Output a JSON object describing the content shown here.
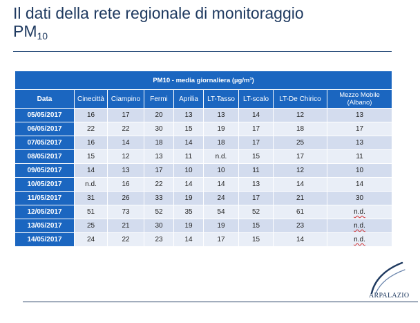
{
  "slide": {
    "title_line1": "Il dati della rete regionale di monitoraggio",
    "title_pm": "PM",
    "title_pm_sub": "10"
  },
  "table": {
    "caption": "PM10 - media giornaliera (µg/m³)",
    "headers": {
      "date": "Data",
      "cinecitta": "Cinecittà",
      "ciampino": "Ciampino",
      "fermi": "Fermi",
      "aprilia": "Aprilia",
      "lt_tasso": "LT-Tasso",
      "lt_scalo": "LT-scalo",
      "lt_de_chirico": "LT-De Chirico",
      "mezzo_mobile": "Mezzo Mobile (Albano)"
    },
    "rows": [
      {
        "date": "05/05/2017",
        "cinecitta": "16",
        "ciampino": "17",
        "fermi": "20",
        "aprilia": "13",
        "lt_tasso": "13",
        "lt_scalo": "14",
        "lt_de_chirico": "12",
        "mezzo_mobile": "13"
      },
      {
        "date": "06/05/2017",
        "cinecitta": "22",
        "ciampino": "22",
        "fermi": "30",
        "aprilia": "15",
        "lt_tasso": "19",
        "lt_scalo": "17",
        "lt_de_chirico": "18",
        "mezzo_mobile": "17"
      },
      {
        "date": "07/05/2017",
        "cinecitta": "16",
        "ciampino": "14",
        "fermi": "18",
        "aprilia": "14",
        "lt_tasso": "18",
        "lt_scalo": "17",
        "lt_de_chirico": "25",
        "mezzo_mobile": "13"
      },
      {
        "date": "08/05/2017",
        "cinecitta": "15",
        "ciampino": "12",
        "fermi": "13",
        "aprilia": "11",
        "lt_tasso": "n.d.",
        "lt_scalo": "15",
        "lt_de_chirico": "17",
        "mezzo_mobile": "11"
      },
      {
        "date": "09/05/2017",
        "cinecitta": "14",
        "ciampino": "13",
        "fermi": "17",
        "aprilia": "10",
        "lt_tasso": "10",
        "lt_scalo": "11",
        "lt_de_chirico": "12",
        "mezzo_mobile": "10"
      },
      {
        "date": "10/05/2017",
        "cinecitta": "n.d.",
        "ciampino": "16",
        "fermi": "22",
        "aprilia": "14",
        "lt_tasso": "14",
        "lt_scalo": "13",
        "lt_de_chirico": "14",
        "mezzo_mobile": "14"
      },
      {
        "date": "11/05/2017",
        "cinecitta": "31",
        "ciampino": "26",
        "fermi": "33",
        "aprilia": "19",
        "lt_tasso": "24",
        "lt_scalo": "17",
        "lt_de_chirico": "21",
        "mezzo_mobile": "30"
      },
      {
        "date": "12/05/2017",
        "cinecitta": "51",
        "ciampino": "73",
        "fermi": "52",
        "aprilia": "35",
        "lt_tasso": "54",
        "lt_scalo": "52",
        "lt_de_chirico": "61",
        "mezzo_mobile": "n.d."
      },
      {
        "date": "13/05/2017",
        "cinecitta": "25",
        "ciampino": "21",
        "fermi": "30",
        "aprilia": "19",
        "lt_tasso": "19",
        "lt_scalo": "15",
        "lt_de_chirico": "23",
        "mezzo_mobile": "n.d."
      },
      {
        "date": "14/05/2017",
        "cinecitta": "24",
        "ciampino": "22",
        "fermi": "23",
        "aprilia": "14",
        "lt_tasso": "17",
        "lt_scalo": "15",
        "lt_de_chirico": "14",
        "mezzo_mobile": "n.d."
      }
    ]
  },
  "logo": {
    "text": "ARPALAZIO",
    "color": "#1f3a60"
  },
  "colors": {
    "header_blue": "#1b66c0",
    "row_light": "#d3dcee",
    "row_lighter": "#e9eef7",
    "title_color": "#1f3a60"
  }
}
